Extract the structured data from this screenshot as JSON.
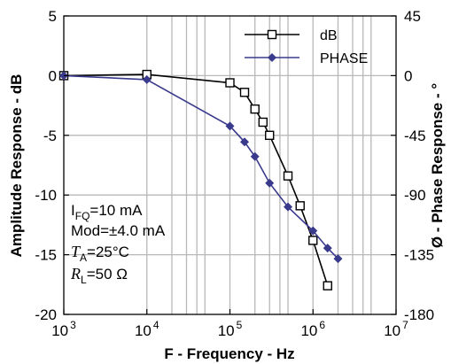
{
  "chart_data": {
    "type": "line",
    "xlabel": "F - Frequency - Hz",
    "ylabel": "Amplitude Response - dB",
    "y2label": "Ø - Phase Response - °",
    "xscale": "log",
    "xlim": [
      1000,
      10000000
    ],
    "ylim": [
      -20,
      5
    ],
    "y2lim": [
      -180,
      45
    ],
    "x_ticks": [
      {
        "base": "10",
        "exp": "3",
        "value": 1000
      },
      {
        "base": "10",
        "exp": "4",
        "value": 10000
      },
      {
        "base": "10",
        "exp": "5",
        "value": 100000
      },
      {
        "base": "10",
        "exp": "6",
        "value": 1000000
      },
      {
        "base": "10",
        "exp": "7",
        "value": 10000000
      }
    ],
    "y_ticks": [
      "5",
      "0",
      "-5",
      "-10",
      "-15",
      "-20"
    ],
    "y2_ticks": [
      "45",
      "0",
      "-45",
      "-90",
      "-135",
      "-180"
    ],
    "grid": true,
    "legend_position": "top-right",
    "series": [
      {
        "name": "dB",
        "axis": "left",
        "marker": "square",
        "color": "#000000",
        "x": [
          1000,
          10000,
          100000,
          150000,
          200000,
          250000,
          300000,
          500000,
          700000,
          1000000,
          1500000
        ],
        "y": [
          0,
          0.1,
          -0.6,
          -1.4,
          -2.8,
          -3.9,
          -5.0,
          -8.4,
          -10.9,
          -13.8,
          -17.6
        ]
      },
      {
        "name": "PHASE",
        "axis": "right",
        "marker": "diamond",
        "color": "#3a3a8c",
        "x": [
          1000,
          10000,
          100000,
          150000,
          200000,
          300000,
          500000,
          1000000,
          1500000,
          2000000
        ],
        "y": [
          0,
          -3,
          -38,
          -50,
          -61,
          -81,
          -99,
          -117,
          -130,
          -138
        ]
      }
    ],
    "annotations": {
      "ifq_main": "I",
      "ifq_sub": "FQ",
      "ifq_value": "=10 mA",
      "mod": "Mod=±4.0 mA",
      "ta_main": "T",
      "ta_sub": "A",
      "ta_value": "=25°C",
      "rl_main": "R",
      "rl_sub": "L",
      "rl_value": "=50 Ω"
    }
  }
}
